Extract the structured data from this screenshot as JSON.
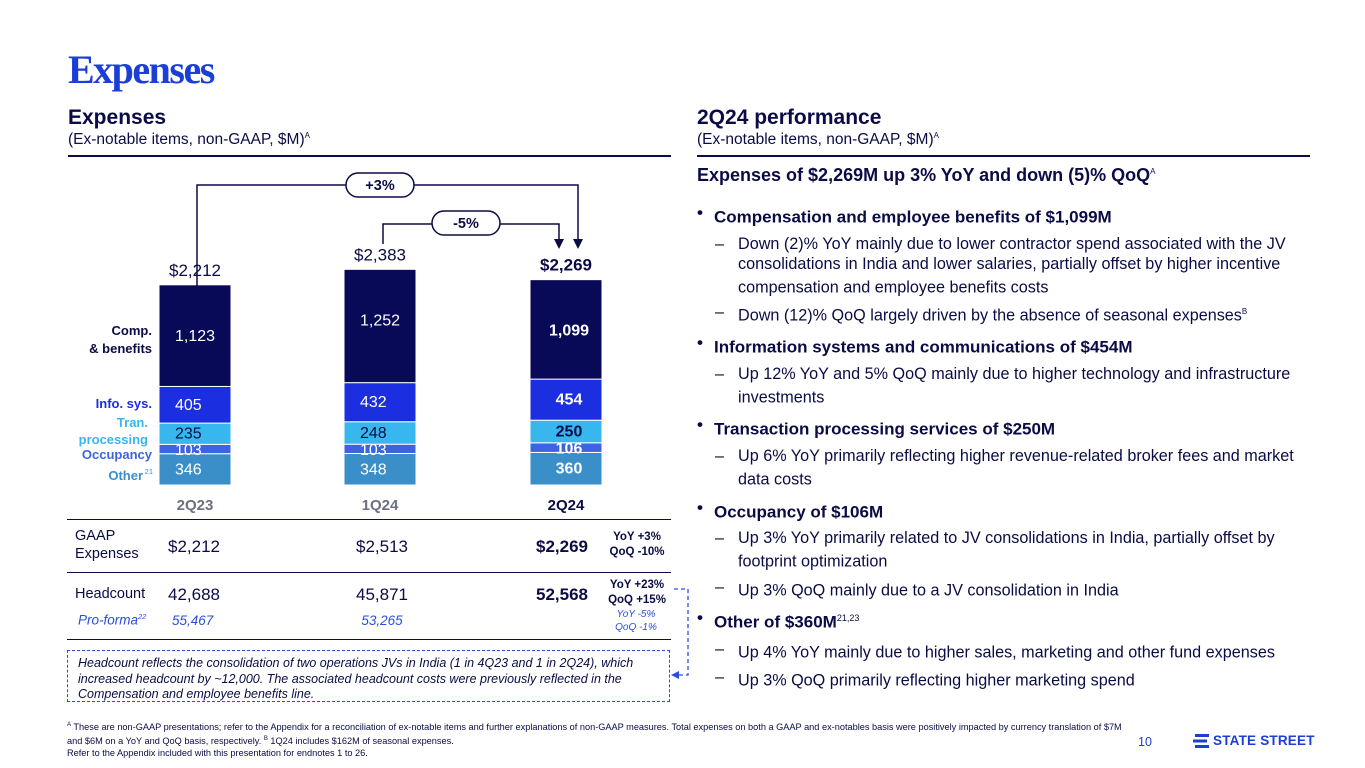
{
  "slide": {
    "title": "Expenses",
    "page_number": "10",
    "logo_text": "STATE STREET"
  },
  "left": {
    "title": "Expenses",
    "subtitle": "(Ex-notable items, non-GAAP, $M)",
    "subtitle_sup": "A"
  },
  "right": {
    "title": "2Q24 performance",
    "subtitle": "(Ex-notable items, non-GAAP, $M)",
    "subtitle_sup": "A"
  },
  "chart_data": {
    "type": "bar",
    "stacked": true,
    "categories": [
      "2Q23",
      "1Q24",
      "2Q24"
    ],
    "series": [
      {
        "name": "Other",
        "label_sup": "21",
        "values": [
          346,
          348,
          360
        ],
        "color": "#3a8fc9"
      },
      {
        "name": "Occupancy",
        "values": [
          103,
          103,
          106
        ],
        "color": "#3d63e0"
      },
      {
        "name": "Tran. processing",
        "values": [
          235,
          248,
          250
        ],
        "color": "#38b6ee"
      },
      {
        "name": "Info. sys.",
        "values": [
          405,
          432,
          454
        ],
        "color": "#1b2ee0"
      },
      {
        "name": "Comp. & benefits",
        "values": [
          1123,
          1252,
          1099
        ],
        "color": "#080a57"
      }
    ],
    "totals": [
      "$2,212",
      "$2,383",
      "$2,269"
    ],
    "highlight_category": "2Q24",
    "annotations": [
      {
        "label": "+3%",
        "from": "2Q23",
        "to": "2Q24"
      },
      {
        "label": "-5%",
        "from": "1Q24",
        "to": "2Q24"
      }
    ],
    "legend_labels": {
      "comp": [
        "Comp.",
        "& benefits"
      ],
      "info": "Info. sys.",
      "tran": [
        "Tran.",
        "processing"
      ],
      "occ": "Occupancy",
      "other": "Other"
    }
  },
  "table": {
    "gaap": {
      "label": [
        "GAAP",
        "Expenses"
      ],
      "values": [
        "$2,212",
        "$2,513",
        "$2,269"
      ],
      "yoy": "YoY +3%",
      "qoq": "QoQ -10%"
    },
    "headcount": {
      "label": "Headcount",
      "values": [
        "42,688",
        "45,871",
        "52,568"
      ],
      "yoy": "YoY +23%",
      "qoq": "QoQ +15%"
    },
    "proforma": {
      "label": "Pro-forma",
      "label_sup": "22",
      "values": [
        "55,467",
        "53,265"
      ],
      "yoy": "YoY -5%",
      "qoq": "QoQ -1%"
    }
  },
  "headcount_note": "Headcount reflects the consolidation of two operations JVs in India (1 in 4Q23 and 1 in 2Q24), which increased headcount by ~12,000. The associated headcount costs were previously reflected in the Compensation and employee benefits line.",
  "performance": {
    "headline": "Expenses of $2,269M up 3% YoY and down (5)% QoQ",
    "headline_sup": "A",
    "items": [
      {
        "title": "Compensation and employee benefits of $1,099M",
        "title_sup": "",
        "subs": [
          {
            "text": "Down (2)% YoY mainly due to lower contractor spend associated with the JV consolidations in India and lower salaries, partially offset by higher incentive compensation and employee benefits costs",
            "sup": ""
          },
          {
            "text": "Down (12)% QoQ largely driven by the absence of seasonal expenses",
            "sup": "B"
          }
        ]
      },
      {
        "title": "Information systems and communications of $454M",
        "title_sup": "",
        "subs": [
          {
            "text": "Up 12% YoY and 5% QoQ mainly due to higher technology and infrastructure investments",
            "sup": ""
          }
        ]
      },
      {
        "title": "Transaction processing services of $250M",
        "title_sup": "",
        "subs": [
          {
            "text": "Up 6% YoY primarily reflecting higher revenue-related broker fees and market data costs",
            "sup": ""
          }
        ]
      },
      {
        "title": "Occupancy of $106M",
        "title_sup": "",
        "subs": [
          {
            "text": "Up 3% YoY primarily related to JV consolidations in India, partially offset by footprint optimization",
            "sup": ""
          },
          {
            "text": "Up 3% QoQ mainly due to a JV consolidation in India",
            "sup": ""
          }
        ]
      },
      {
        "title": "Other of $360M",
        "title_sup": "21,23",
        "subs": [
          {
            "text": "Up 4% YoY mainly due to higher sales, marketing and other fund expenses",
            "sup": ""
          },
          {
            "text": "Up 3% QoQ primarily reflecting higher marketing spend",
            "sup": ""
          }
        ]
      }
    ]
  },
  "footnotes": {
    "a_sup": "A",
    "a_text": "These are non-GAAP presentations; refer to the Appendix for a reconciliation of ex-notable items and further explanations of non-GAAP measures. Total expenses on both a GAAP and ex-notables basis were positively impacted by currency translation of $7M and $6M on a YoY and QoQ basis, respectively.",
    "b_sup": "B",
    "b_text": "1Q24 includes $162M of seasonal expenses.",
    "ref_text": "Refer to the Appendix included with this presentation for endnotes 1 to 26."
  },
  "colors": {
    "navy": "#0b0b45",
    "accent": "#1b3ed6",
    "comp": "#080a57",
    "info": "#1b2ee0",
    "tran": "#38b6ee",
    "occ": "#3d63e0",
    "other": "#3a8fc9"
  }
}
